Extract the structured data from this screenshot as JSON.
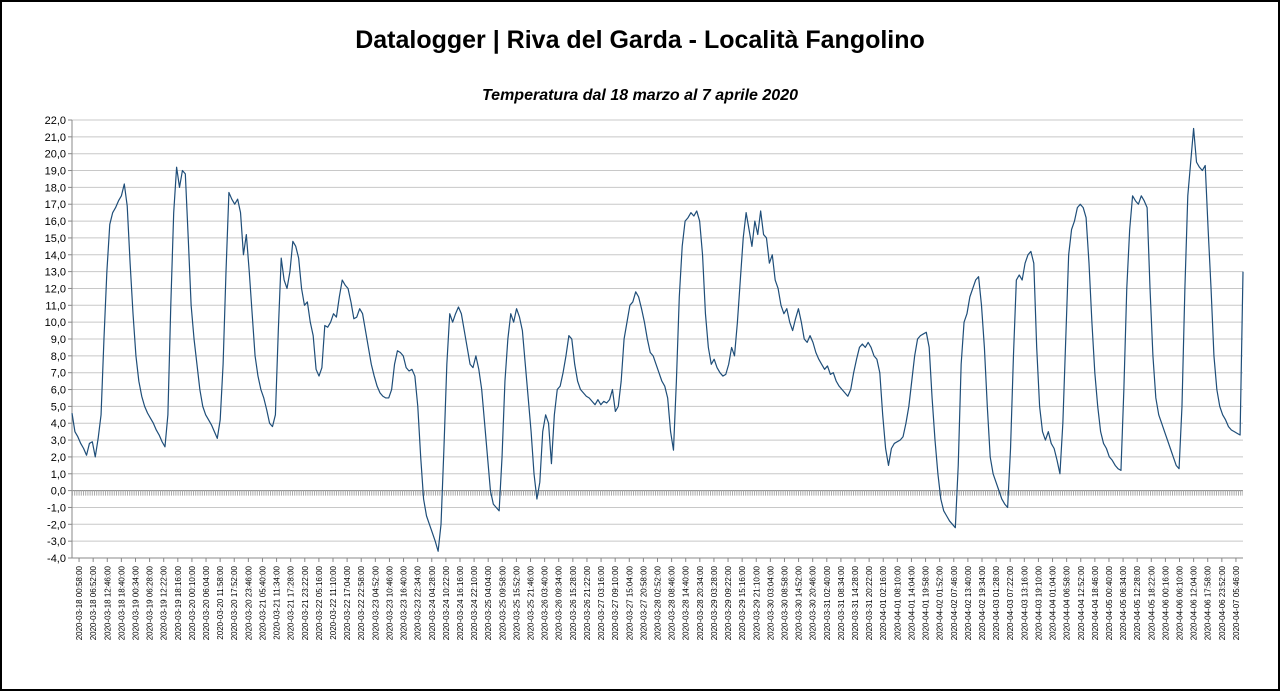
{
  "chart_data": {
    "type": "line",
    "title": "Datalogger | Riva del Garda - Località Fangolino",
    "subtitle": "Temperatura dal 18 marzo al 7 aprile 2020",
    "xlabel": "",
    "ylabel": "",
    "ylim": [
      -4,
      22
    ],
    "ystep": 1,
    "grid": true,
    "legend": "none",
    "line_color": "#1f4e79",
    "x_tick_labels": [
      "2020-03-18 00:58:00",
      "2020-03-18 06:52:00",
      "2020-03-18 12:46:00",
      "2020-03-18 18:40:00",
      "2020-03-19 00:34:00",
      "2020-03-19 06:28:00",
      "2020-03-19 12:22:00",
      "2020-03-19 18:16:00",
      "2020-03-20 00:10:00",
      "2020-03-20 06:04:00",
      "2020-03-20 11:58:00",
      "2020-03-20 17:52:00",
      "2020-03-20 23:46:00",
      "2020-03-21 05:40:00",
      "2020-03-21 11:34:00",
      "2020-03-21 17:28:00",
      "2020-03-21 23:22:00",
      "2020-03-22 05:16:00",
      "2020-03-22 11:10:00",
      "2020-03-22 17:04:00",
      "2020-03-22 22:58:00",
      "2020-03-23 04:52:00",
      "2020-03-23 10:46:00",
      "2020-03-23 16:40:00",
      "2020-03-23 22:34:00",
      "2020-03-24 04:28:00",
      "2020-03-24 10:22:00",
      "2020-03-24 16:16:00",
      "2020-03-24 22:10:00",
      "2020-03-25 04:04:00",
      "2020-03-25 09:58:00",
      "2020-03-25 15:52:00",
      "2020-03-25 21:46:00",
      "2020-03-26 03:40:00",
      "2020-03-26 09:34:00",
      "2020-03-26 15:28:00",
      "2020-03-26 21:22:00",
      "2020-03-27 03:16:00",
      "2020-03-27 09:10:00",
      "2020-03-27 15:04:00",
      "2020-03-27 20:58:00",
      "2020-03-28 02:52:00",
      "2020-03-28 08:46:00",
      "2020-03-28 14:40:00",
      "2020-03-28 20:34:00",
      "2020-03-29 03:28:00",
      "2020-03-29 09:22:00",
      "2020-03-29 15:16:00",
      "2020-03-29 21:10:00",
      "2020-03-30 03:04:00",
      "2020-03-30 08:58:00",
      "2020-03-30 14:52:00",
      "2020-03-30 20:46:00",
      "2020-03-31 02:40:00",
      "2020-03-31 08:34:00",
      "2020-03-31 14:28:00",
      "2020-03-31 20:22:00",
      "2020-04-01 02:16:00",
      "2020-04-01 08:10:00",
      "2020-04-01 14:04:00",
      "2020-04-01 19:58:00",
      "2020-04-02 01:52:00",
      "2020-04-02 07:46:00",
      "2020-04-02 13:40:00",
      "2020-04-02 19:34:00",
      "2020-04-03 01:28:00",
      "2020-04-03 07:22:00",
      "2020-04-03 13:16:00",
      "2020-04-03 19:10:00",
      "2020-04-04 01:04:00",
      "2020-04-04 06:58:00",
      "2020-04-04 12:52:00",
      "2020-04-04 18:46:00",
      "2020-04-05 00:40:00",
      "2020-04-05 06:34:00",
      "2020-04-05 12:28:00",
      "2020-04-05 18:22:00",
      "2020-04-06 00:16:00",
      "2020-04-06 06:10:00",
      "2020-04-06 12:04:00",
      "2020-04-06 17:58:00",
      "2020-04-06 23:52:00",
      "2020-04-07 05:46:00"
    ],
    "series": [
      {
        "values": [
          4.6,
          3.5,
          3.2,
          2.8,
          2.5,
          2.1,
          2.8,
          2.9,
          2.0,
          3.1,
          4.5,
          9.0,
          13.0,
          15.8,
          16.5,
          16.8,
          17.2,
          17.5,
          18.2,
          16.9,
          13.5,
          10.5,
          8.0,
          6.5,
          5.6,
          5.0,
          4.6,
          4.3,
          4.0,
          3.6,
          3.3,
          2.9,
          2.6,
          4.5,
          11.0,
          16.5,
          19.2,
          18.0,
          19.0,
          18.8,
          15.0,
          11.0,
          9.0,
          7.5,
          6.0,
          5.0,
          4.5,
          4.2,
          3.9,
          3.5,
          3.1,
          4.2,
          7.5,
          13.0,
          17.7,
          17.3,
          17.0,
          17.3,
          16.5,
          14.0,
          15.2,
          13.0,
          10.5,
          8.0,
          6.8,
          6.0,
          5.5,
          4.8,
          4.0,
          3.8,
          4.5,
          9.5,
          13.8,
          12.5,
          12.0,
          13.0,
          14.8,
          14.5,
          13.8,
          12.0,
          11.0,
          11.2,
          10.0,
          9.2,
          7.2,
          6.8,
          7.3,
          9.8,
          9.7,
          10.0,
          10.5,
          10.3,
          11.5,
          12.5,
          12.2,
          12.0,
          11.2,
          10.2,
          10.3,
          10.8,
          10.5,
          9.5,
          8.5,
          7.5,
          6.8,
          6.2,
          5.8,
          5.6,
          5.5,
          5.5,
          6.0,
          7.5,
          8.3,
          8.2,
          8.0,
          7.3,
          7.1,
          7.2,
          6.8,
          5.0,
          2.0,
          -0.5,
          -1.5,
          -2.0,
          -2.5,
          -3.0,
          -3.6,
          -2.0,
          2.5,
          7.5,
          10.5,
          10.0,
          10.5,
          10.9,
          10.5,
          9.5,
          8.5,
          7.5,
          7.3,
          8.0,
          7.2,
          6.0,
          4.0,
          2.0,
          0.0,
          -0.8,
          -1.0,
          -1.2,
          2.0,
          6.5,
          9.0,
          10.5,
          10.0,
          10.8,
          10.3,
          9.5,
          7.5,
          5.5,
          3.5,
          1.0,
          -0.5,
          0.5,
          3.5,
          4.5,
          4.0,
          1.6,
          4.5,
          6.0,
          6.2,
          7.0,
          8.0,
          9.2,
          9.0,
          7.5,
          6.5,
          6.0,
          5.8,
          5.6,
          5.5,
          5.3,
          5.1,
          5.4,
          5.1,
          5.3,
          5.2,
          5.4,
          6.0,
          4.7,
          5.0,
          6.5,
          9.0,
          10.0,
          11.0,
          11.2,
          11.8,
          11.5,
          10.8,
          10.0,
          9.0,
          8.2,
          8.0,
          7.5,
          7.0,
          6.5,
          6.2,
          5.5,
          3.5,
          2.4,
          6.5,
          11.5,
          14.5,
          16.0,
          16.2,
          16.5,
          16.3,
          16.6,
          16.0,
          14.0,
          10.5,
          8.5,
          7.5,
          7.8,
          7.3,
          7.0,
          6.8,
          6.9,
          7.5,
          8.5,
          8.0,
          10.0,
          12.5,
          15.0,
          16.5,
          15.5,
          14.5,
          16.0,
          15.2,
          16.6,
          15.2,
          15.0,
          13.5,
          14.0,
          12.5,
          12.0,
          11.0,
          10.5,
          10.8,
          10.0,
          9.5,
          10.2,
          10.8,
          10.0,
          9.0,
          8.8,
          9.2,
          8.8,
          8.2,
          7.8,
          7.5,
          7.2,
          7.4,
          6.9,
          7.0,
          6.5,
          6.2,
          6.0,
          5.8,
          5.6,
          6.0,
          7.0,
          7.8,
          8.5,
          8.7,
          8.5,
          8.8,
          8.5,
          8.0,
          7.8,
          7.0,
          4.5,
          2.5,
          1.5,
          2.5,
          2.8,
          2.9,
          3.0,
          3.2,
          4.0,
          5.0,
          6.5,
          8.0,
          9.0,
          9.2,
          9.3,
          9.4,
          8.5,
          5.5,
          3.0,
          1.0,
          -0.5,
          -1.2,
          -1.5,
          -1.8,
          -2.0,
          -2.2,
          1.5,
          7.5,
          10.0,
          10.5,
          11.5,
          12.0,
          12.5,
          12.7,
          11.0,
          8.5,
          5.0,
          2.0,
          1.0,
          0.5,
          0.0,
          -0.5,
          -0.8,
          -1.0,
          2.5,
          8.0,
          12.5,
          12.8,
          12.5,
          13.5,
          14.0,
          14.2,
          13.5,
          8.5,
          5.0,
          3.5,
          3.0,
          3.5,
          2.8,
          2.5,
          1.8,
          1.0,
          4.0,
          9.0,
          14.0,
          15.5,
          16.0,
          16.8,
          17.0,
          16.8,
          16.2,
          13.5,
          10.0,
          7.0,
          5.0,
          3.5,
          2.8,
          2.5,
          2.0,
          1.8,
          1.5,
          1.3,
          1.2,
          6.0,
          12.0,
          15.5,
          17.5,
          17.2,
          17.0,
          17.5,
          17.2,
          16.8,
          12.0,
          8.0,
          5.5,
          4.5,
          4.0,
          3.5,
          3.0,
          2.5,
          2.0,
          1.5,
          1.3,
          5.0,
          12.0,
          17.5,
          19.5,
          21.5,
          19.5,
          19.2,
          19.0,
          19.3,
          15.5,
          12.0,
          8.0,
          6.0,
          5.0,
          4.5,
          4.2,
          3.8,
          3.6,
          3.5,
          3.4,
          3.3,
          13.0
        ]
      }
    ]
  }
}
